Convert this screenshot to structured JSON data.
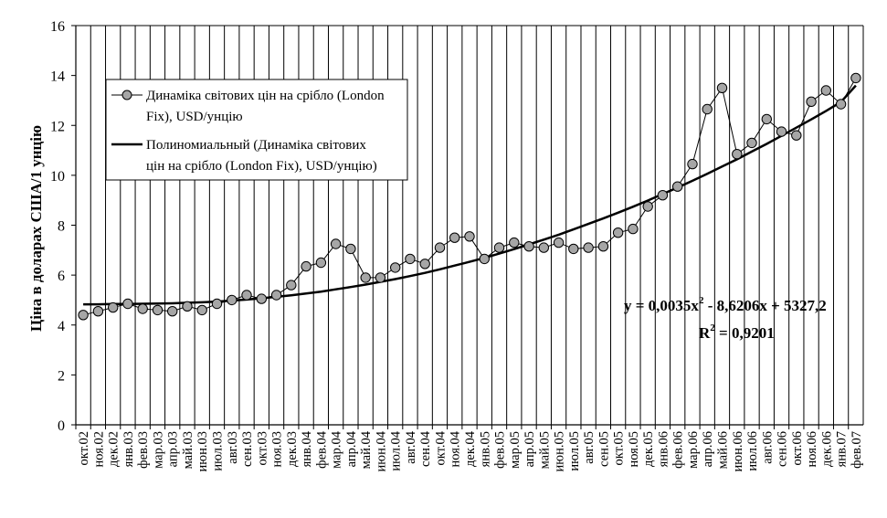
{
  "chart_data": {
    "type": "line",
    "ylabel": "Ціна в доларах США/1 унцію",
    "xlabel": "",
    "ylim": [
      0,
      16
    ],
    "yticks": [
      0,
      2,
      4,
      6,
      8,
      10,
      12,
      14,
      16
    ],
    "grid": "vertical lines at every category",
    "legend_placement": "top-left",
    "categories": [
      "окт.02",
      "ноя.02",
      "дек.02",
      "янв.03",
      "фев.03",
      "мар.03",
      "апр.03",
      "май.03",
      "июн.03",
      "июл.03",
      "авг.03",
      "сен.03",
      "окт.03",
      "ноя.03",
      "дек.03",
      "янв.04",
      "фев.04",
      "мар.04",
      "апр.04",
      "май.04",
      "июн.04",
      "июл.04",
      "авг.04",
      "сен.04",
      "окт.04",
      "ноя.04",
      "дек.04",
      "янв.05",
      "фев.05",
      "мар.05",
      "апр.05",
      "май.05",
      "июн.05",
      "июл.05",
      "авг.05",
      "сен.05",
      "окт.05",
      "ноя.05",
      "дек.05",
      "янв.06",
      "фев.06",
      "мар.06",
      "апр.06",
      "май.06",
      "июн.06",
      "июл.06",
      "авг.06",
      "сен.06",
      "окт.06",
      "ноя.06",
      "дек.06",
      "янв.07",
      "фев.07"
    ],
    "series": [
      {
        "name": "Динаміка світових цін на срібло (London Fix), USD/унцію",
        "legend_lines": [
          "Динаміка світових цін на срібло (London",
          "Fix), USD/унцію"
        ],
        "color": "#000000",
        "marker_color": "#a6a6a6",
        "values": [
          4.4,
          4.55,
          4.7,
          4.85,
          4.65,
          4.6,
          4.55,
          4.75,
          4.6,
          4.85,
          5.0,
          5.2,
          5.05,
          5.2,
          5.6,
          6.35,
          6.5,
          7.25,
          7.05,
          5.9,
          5.9,
          6.3,
          6.65,
          6.45,
          7.1,
          7.5,
          7.55,
          6.65,
          7.1,
          7.3,
          7.15,
          7.1,
          7.3,
          7.05,
          7.1,
          7.15,
          7.7,
          7.85,
          8.75,
          9.2,
          9.55,
          10.45,
          12.65,
          13.5,
          10.85,
          11.3,
          12.25,
          11.75,
          11.6,
          12.95,
          13.4,
          12.85,
          13.9
        ]
      },
      {
        "name": "Полиномиальный (Динаміка світових цін на срібло (London Fix), USD/унцію)",
        "legend_lines": [
          "Полиномиальный (Динаміка світових",
          "цін на срібло (London Fix), USD/унцію)"
        ],
        "color": "#000000",
        "type": "trendline",
        "values": [
          4.83,
          4.83,
          4.84,
          4.84,
          4.85,
          4.86,
          4.87,
          4.89,
          4.91,
          4.94,
          4.98,
          5.02,
          5.07,
          5.13,
          5.19,
          5.26,
          5.34,
          5.43,
          5.52,
          5.62,
          5.73,
          5.84,
          5.96,
          6.09,
          6.23,
          6.38,
          6.53,
          6.69,
          6.86,
          7.04,
          7.23,
          7.42,
          7.62,
          7.83,
          8.05,
          8.27,
          8.5,
          8.74,
          8.99,
          9.25,
          9.51,
          9.78,
          10.06,
          10.35,
          10.64,
          10.95,
          11.26,
          11.58,
          11.91,
          12.24,
          12.58,
          12.94,
          13.6
        ]
      }
    ],
    "annotations": {
      "equation_main": "y = 0,0035x",
      "equation_sup": "2",
      "equation_rest": " - 8,6206x + 5327,2",
      "r2_main": "R",
      "r2_sup": "2",
      "r2_rest": " = 0,9201"
    }
  }
}
